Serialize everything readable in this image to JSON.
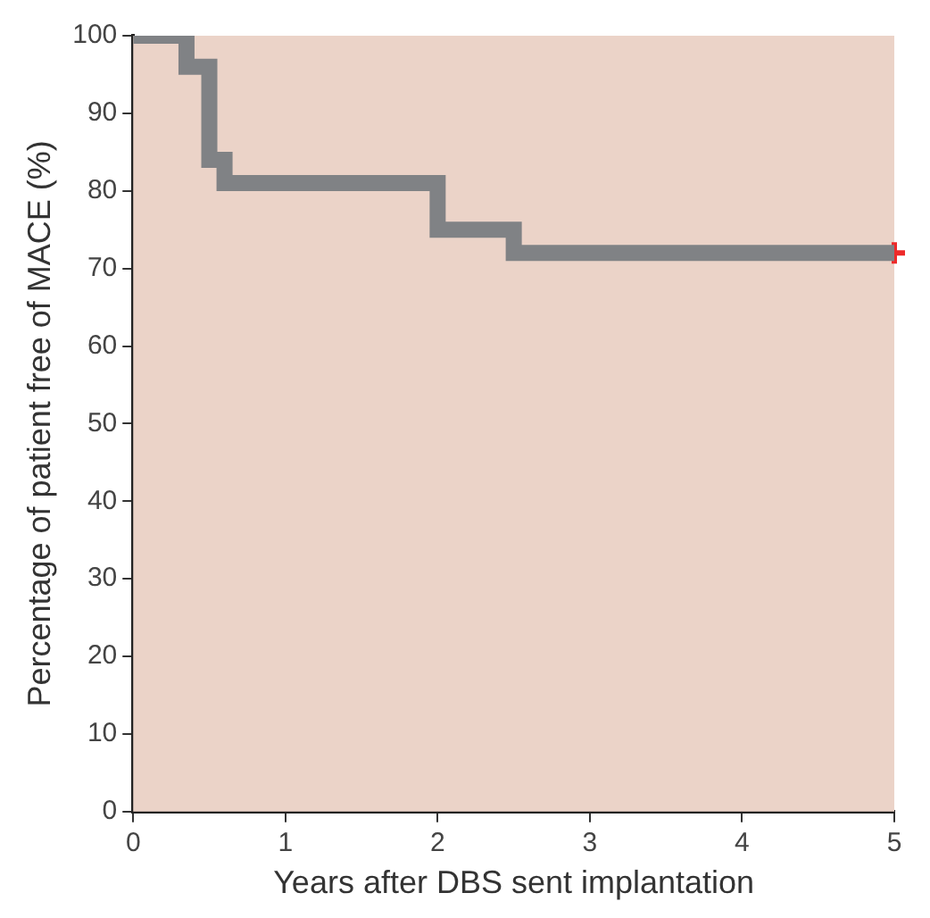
{
  "chart_data": {
    "type": "step",
    "xlabel": "Years after DBS sent implantation",
    "ylabel": "Percentage of patient free of MACE (%)",
    "xlim": [
      0,
      5
    ],
    "xticks": [
      0,
      1,
      2,
      3,
      4,
      5
    ],
    "ylim": [
      0,
      100
    ],
    "yticks": [
      0,
      10,
      20,
      30,
      40,
      50,
      60,
      70,
      80,
      90,
      100
    ],
    "grid": false,
    "legend": false,
    "series": [
      {
        "color": "#808285",
        "x": [
          0,
          0.35,
          0.5,
          0.6,
          2,
          2.5,
          5
        ],
        "values": [
          100,
          96,
          84,
          81,
          75,
          72,
          72
        ],
        "marker": "none"
      },
      {
        "type": "scatter",
        "color": "#ee2a2a",
        "x": [
          5
        ],
        "values": [
          72
        ],
        "marker": "cross"
      }
    ]
  }
}
